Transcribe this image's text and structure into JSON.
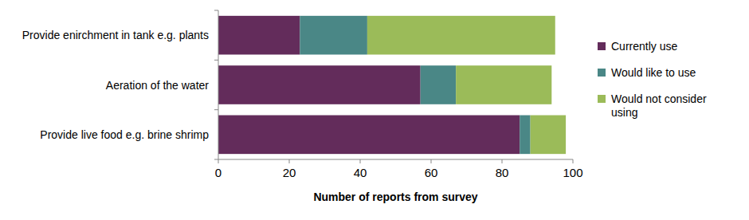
{
  "chart_data": {
    "type": "bar",
    "orientation": "horizontal",
    "stacked": true,
    "categories": [
      "Provide enirchment in tank e.g. plants",
      "Aeration of the water",
      "Provide live food e.g. brine shrimp"
    ],
    "series": [
      {
        "name": "Currently use",
        "color": "#632c5b",
        "values": [
          23,
          57,
          85
        ]
      },
      {
        "name": "Would like to use",
        "color": "#4a8786",
        "values": [
          19,
          10,
          3
        ]
      },
      {
        "name": "Would not consider using",
        "color": "#9bbb59",
        "values": [
          53,
          27,
          10
        ]
      }
    ],
    "xlabel": "Number of reports from survey",
    "xlim": [
      0,
      100
    ],
    "xticks": [
      0,
      20,
      40,
      60,
      80,
      100
    ],
    "legend": "right",
    "grid": false
  }
}
